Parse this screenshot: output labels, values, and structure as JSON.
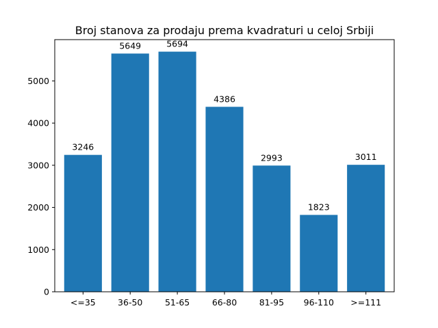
{
  "chart_data": {
    "type": "bar",
    "title": "Broj stanova za prodaju prema kvadraturi u celoj Srbiji",
    "xlabel": "",
    "ylabel": "",
    "categories": [
      "<=35",
      "36-50",
      "51-65",
      "66-80",
      "81-95",
      "96-110",
      ">=111"
    ],
    "values": [
      3246,
      5649,
      5694,
      4386,
      2993,
      1823,
      3011
    ],
    "data_labels": [
      "3246",
      "5649",
      "5694",
      "4386",
      "2993",
      "1823",
      "3011"
    ],
    "ylim": [
      0,
      5979
    ],
    "yticks": [
      0,
      1000,
      2000,
      3000,
      4000,
      5000
    ],
    "ytick_labels": [
      "0",
      "1000",
      "2000",
      "3000",
      "4000",
      "5000"
    ],
    "bar_color": "#1f77b4",
    "grid": false,
    "legend": "none"
  }
}
